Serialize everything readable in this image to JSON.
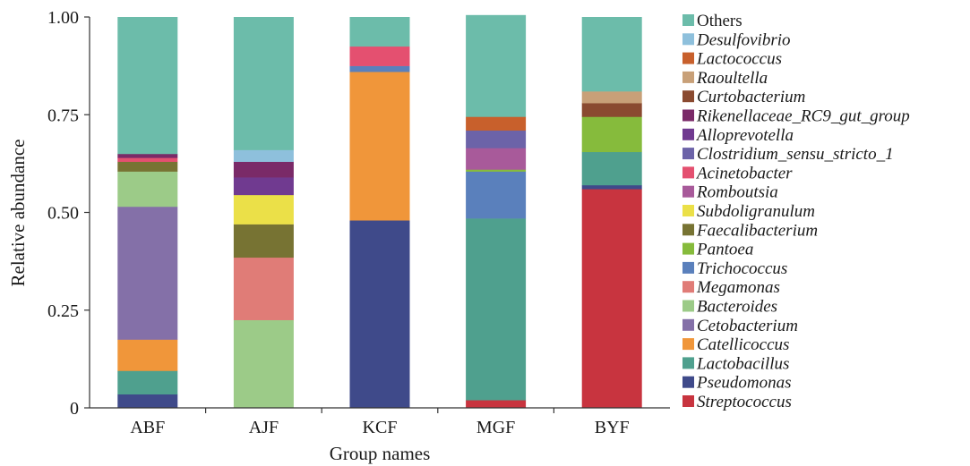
{
  "chart_data": {
    "type": "bar",
    "stacked": true,
    "xlabel": "Group names",
    "ylabel": "Relative abundance",
    "ylim": [
      0,
      1
    ],
    "yticks": [
      {
        "value": 0,
        "label": "0"
      },
      {
        "value": 0.25,
        "label": "0.25"
      },
      {
        "value": 0.5,
        "label": "0.50"
      },
      {
        "value": 0.75,
        "label": "0.75"
      },
      {
        "value": 1,
        "label": "1.00"
      }
    ],
    "categories": [
      "ABF",
      "AJF",
      "KCF",
      "MGF",
      "BYF"
    ],
    "legend_position": "right",
    "grid": false,
    "series": [
      {
        "name": "Streptococcus",
        "color": "#c8343f",
        "values": [
          0.0,
          0.0,
          0.0,
          0.02,
          0.56
        ]
      },
      {
        "name": "Pseudomonas",
        "color": "#3f4a8a",
        "values": [
          0.035,
          0.0,
          0.48,
          0.0,
          0.01
        ]
      },
      {
        "name": "Lactobacillus",
        "color": "#4fa08e",
        "values": [
          0.06,
          0.0,
          0.0,
          0.465,
          0.085
        ]
      },
      {
        "name": "Catellicoccus",
        "color": "#f0963a",
        "values": [
          0.08,
          0.0,
          0.38,
          0.0,
          0.0
        ]
      },
      {
        "name": "Cetobacterium",
        "color": "#8470a8",
        "values": [
          0.34,
          0.0,
          0.0,
          0.0,
          0.0
        ]
      },
      {
        "name": "Bacteroides",
        "color": "#9ccb88",
        "values": [
          0.09,
          0.225,
          0.0,
          0.0,
          0.0
        ]
      },
      {
        "name": "Megamonas",
        "color": "#e07c77",
        "values": [
          0.0,
          0.16,
          0.0,
          0.0,
          0.0
        ]
      },
      {
        "name": "Trichococcus",
        "color": "#5a80bc",
        "values": [
          0.0,
          0.0,
          0.015,
          0.12,
          0.0
        ]
      },
      {
        "name": "Pantoea",
        "color": "#86bb3c",
        "values": [
          0.0,
          0.0,
          0.0,
          0.005,
          0.09
        ]
      },
      {
        "name": "Faecalibacterium",
        "color": "#777333",
        "values": [
          0.025,
          0.085,
          0.0,
          0.0,
          0.0
        ]
      },
      {
        "name": "Subdoligranulum",
        "color": "#ebe048",
        "values": [
          0.0,
          0.075,
          0.0,
          0.0,
          0.0
        ]
      },
      {
        "name": "Romboutsia",
        "color": "#a85a9a",
        "values": [
          0.0,
          0.0,
          0.0,
          0.055,
          0.0
        ]
      },
      {
        "name": "Acinetobacter",
        "color": "#e45070",
        "values": [
          0.01,
          0.0,
          0.05,
          0.0,
          0.0
        ]
      },
      {
        "name": "Clostridium_sensu_stricto_1",
        "color": "#6c63a8",
        "values": [
          0.0,
          0.0,
          0.0,
          0.045,
          0.0
        ]
      },
      {
        "name": "Alloprevotella",
        "color": "#703a90",
        "values": [
          0.0,
          0.045,
          0.0,
          0.0,
          0.0
        ]
      },
      {
        "name": "Rikenellaceae_RC9_gut_group",
        "color": "#7a2a68",
        "values": [
          0.01,
          0.04,
          0.0,
          0.0,
          0.0
        ]
      },
      {
        "name": "Curtobacterium",
        "color": "#8a4a30",
        "values": [
          0.0,
          0.0,
          0.0,
          0.0,
          0.035
        ]
      },
      {
        "name": "Raoultella",
        "color": "#c8a078",
        "values": [
          0.0,
          0.0,
          0.0,
          0.0,
          0.03
        ]
      },
      {
        "name": "Lactococcus",
        "color": "#c8602c",
        "values": [
          0.0,
          0.0,
          0.0,
          0.035,
          0.0
        ]
      },
      {
        "name": "Desulfovibrio",
        "color": "#8ec0dc",
        "values": [
          0.0,
          0.03,
          0.0,
          0.0,
          0.0
        ]
      },
      {
        "name": "Others",
        "color": "#6cbcaa",
        "values": [
          0.35,
          0.34,
          0.075,
          0.26,
          0.19
        ]
      }
    ]
  }
}
